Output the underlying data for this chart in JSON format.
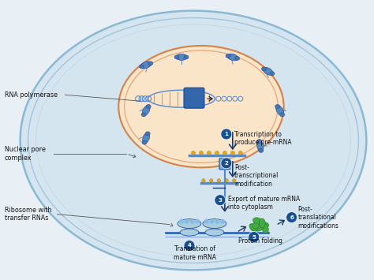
{
  "bg_color": "#e8f0f5",
  "cell_outer_fc": "#d5e5f0",
  "cell_outer_ec": "#8ab8d5",
  "cell_inner_ec": "#a0c5dc",
  "nucleus_fc": "#fae5c8",
  "nucleus_ec": "#d4824a",
  "nucleus_inner_ec": "#e0a070",
  "arrow_color": "#1a3a6a",
  "step_circle_fc": "#1a5090",
  "label_color": "#111111",
  "dna_color": "#5588cc",
  "mrna_color": "#4477bb",
  "rna_poly_fc": "#3366aa",
  "pore_fc": "#7aadcc",
  "pore_ec": "#2255aa",
  "ribosome_fc": "#aaccdd",
  "ribosome_ec": "#2255aa",
  "protein_fc": "#44aa44",
  "protein_ec": "#226622",
  "figsize": [
    4.74,
    3.55
  ],
  "dpi": 100,
  "labels": {
    "rna_polymerase": "RNA polymerase",
    "nuclear_pore": "Nuclear pore\ncomplex",
    "ribosome": "Ribosome with\ntransfer RNAs",
    "step1": "Transcription to\nproduce pre-mRNA",
    "step2": "Post-\ntranscriptional\nmodification",
    "step3": "Export of mature mRNA\ninto cytoplasm",
    "step4": "Translation of\nmature mRNA",
    "step5": "Protein folding",
    "step6": "Post-\ntranslational\nmodifications"
  }
}
